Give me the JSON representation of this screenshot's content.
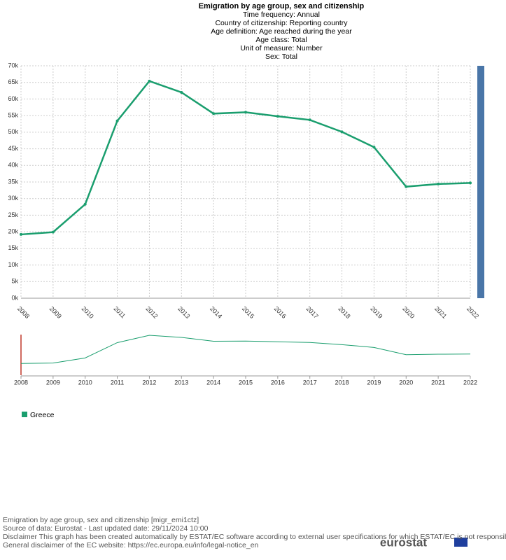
{
  "chart_data": {
    "type": "line",
    "title": "Emigration by age group, sex and citizenship",
    "subtitle": [
      "Time frequency:  Annual",
      "Country of citizenship:  Reporting country",
      "Age definition:  Age reached during the year",
      "Age class:  Total",
      "Unit of measure:  Number",
      "Sex:  Total"
    ],
    "categories": [
      "2008",
      "2009",
      "2010",
      "2011",
      "2012",
      "2013",
      "2014",
      "2015",
      "2016",
      "2017",
      "2018",
      "2019",
      "2020",
      "2021",
      "2022"
    ],
    "series": [
      {
        "name": "Greece",
        "color": "#1a9e6e",
        "values": [
          19200,
          19900,
          28300,
          53400,
          65400,
          62000,
          55600,
          56000,
          54800,
          53700,
          50100,
          45500,
          33600,
          34400,
          34700
        ]
      }
    ],
    "ylim": [
      0,
      70000
    ],
    "yticks": [
      {
        "value": 0,
        "label": "0k"
      },
      {
        "value": 5000,
        "label": "5k"
      },
      {
        "value": 10000,
        "label": "10k"
      },
      {
        "value": 15000,
        "label": "15k"
      },
      {
        "value": 20000,
        "label": "20k"
      },
      {
        "value": 25000,
        "label": "25k"
      },
      {
        "value": 30000,
        "label": "30k"
      },
      {
        "value": 35000,
        "label": "35k"
      },
      {
        "value": 40000,
        "label": "40k"
      },
      {
        "value": 45000,
        "label": "45k"
      },
      {
        "value": 50000,
        "label": "50k"
      },
      {
        "value": 55000,
        "label": "55k"
      },
      {
        "value": 60000,
        "label": "60k"
      },
      {
        "value": 65000,
        "label": "65k"
      },
      {
        "value": 70000,
        "label": "70k"
      }
    ],
    "grid": true,
    "footer": [
      "Emigration by age group, sex and citizenship [migr_emi1ctz]",
      "Source of data: Eurostat - Last updated date: 29/11/2024 10:00",
      "Disclaimer This graph has been created automatically by ESTAT/EC software according to external user specifications for which ESTAT/EC is not responsible. C",
      "General disclaimer of the EC website: https://ec.europa.eu/info/legal-notice_en"
    ],
    "logo": "eurostat"
  }
}
